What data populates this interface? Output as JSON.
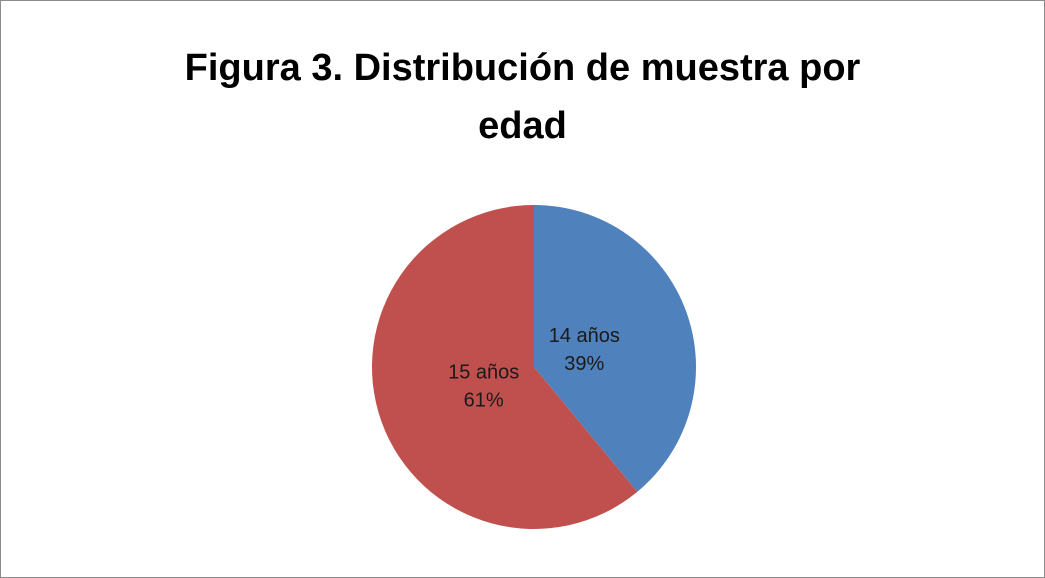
{
  "chart_data": {
    "type": "pie",
    "title": "Figura 3. Distribución de muestra por edad",
    "categories": [
      "14 años",
      "15 años"
    ],
    "values": [
      39,
      61
    ],
    "value_labels": [
      "39%",
      "61%"
    ],
    "colors": [
      "#4f81bd",
      "#c0504d"
    ]
  }
}
